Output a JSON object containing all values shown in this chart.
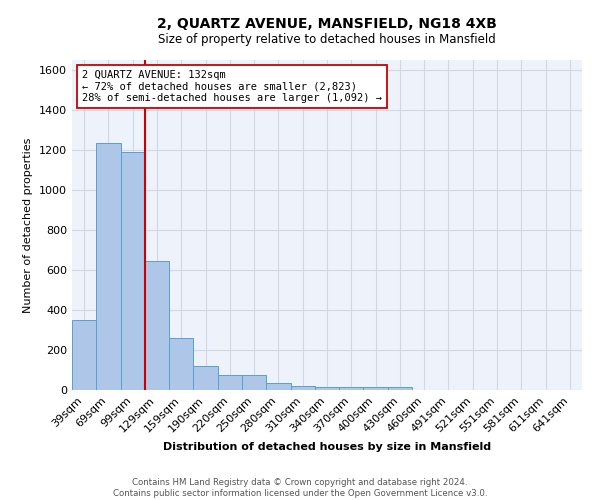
{
  "title": "2, QUARTZ AVENUE, MANSFIELD, NG18 4XB",
  "subtitle": "Size of property relative to detached houses in Mansfield",
  "xlabel": "Distribution of detached houses by size in Mansfield",
  "ylabel": "Number of detached properties",
  "footer_line1": "Contains HM Land Registry data © Crown copyright and database right 2024.",
  "footer_line2": "Contains public sector information licensed under the Open Government Licence v3.0.",
  "bin_labels": [
    "39sqm",
    "69sqm",
    "99sqm",
    "129sqm",
    "159sqm",
    "190sqm",
    "220sqm",
    "250sqm",
    "280sqm",
    "310sqm",
    "340sqm",
    "370sqm",
    "400sqm",
    "430sqm",
    "460sqm",
    "491sqm",
    "521sqm",
    "551sqm",
    "581sqm",
    "611sqm",
    "641sqm"
  ],
  "bar_values": [
    350,
    1235,
    1190,
    645,
    260,
    120,
    73,
    73,
    35,
    22,
    15,
    15,
    15,
    15,
    0,
    0,
    0,
    0,
    0,
    0,
    0
  ],
  "bar_color": "#aec6e8",
  "bar_edgecolor": "#5a9fd4",
  "grid_color": "#d0d8e8",
  "background_color": "#eef2fa",
  "redline_bin_index": 3,
  "redline_color": "#cc0000",
  "annotation_line1": "2 QUARTZ AVENUE: 132sqm",
  "annotation_line2": "← 72% of detached houses are smaller (2,823)",
  "annotation_line3": "28% of semi-detached houses are larger (1,092) →",
  "annotation_box_edgecolor": "#cc0000",
  "annotation_box_facecolor": "#ffffff",
  "ylim": [
    0,
    1650
  ],
  "yticks": [
    0,
    200,
    400,
    600,
    800,
    1000,
    1200,
    1400,
    1600
  ]
}
